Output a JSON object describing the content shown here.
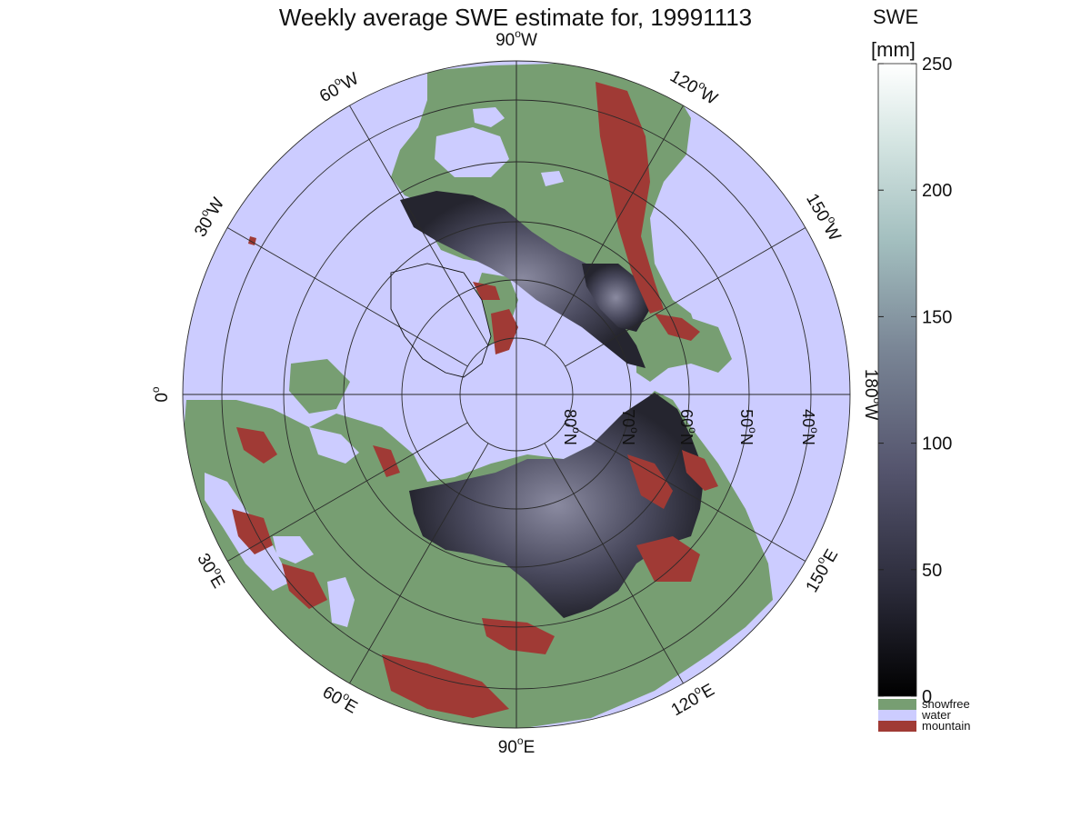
{
  "title": "Weekly average SWE estimate for, 19991113",
  "map": {
    "projection": "north polar stereographic",
    "colors": {
      "water": "#ccccff",
      "snowfree": "#779e72",
      "mountain": "#a03a35",
      "grid": "#2a2a2a",
      "coast": "#111111"
    },
    "lon_labels": [
      {
        "lon": "90W",
        "text": "90",
        "sup": "o",
        "suffix": "W"
      },
      {
        "lon": "120W",
        "text": "120",
        "sup": "o",
        "suffix": "W"
      },
      {
        "lon": "150W",
        "text": "150",
        "sup": "o",
        "suffix": "W"
      },
      {
        "lon": "180W",
        "text": "180",
        "sup": "o",
        "suffix": "W"
      },
      {
        "lon": "150E",
        "text": "150",
        "sup": "o",
        "suffix": "E"
      },
      {
        "lon": "120E",
        "text": "120",
        "sup": "o",
        "suffix": "E"
      },
      {
        "lon": "90E",
        "text": "90",
        "sup": "o",
        "suffix": "E"
      },
      {
        "lon": "60E",
        "text": "60",
        "sup": "o",
        "suffix": "E"
      },
      {
        "lon": "30E",
        "text": "30",
        "sup": "o",
        "suffix": "E"
      },
      {
        "lon": "0",
        "text": "0",
        "sup": "o",
        "suffix": ""
      },
      {
        "lon": "30W",
        "text": "30",
        "sup": "o",
        "suffix": "W"
      },
      {
        "lon": "60W",
        "text": "60",
        "sup": "o",
        "suffix": "W"
      }
    ],
    "lat_labels": [
      {
        "lat": 80,
        "text": "80",
        "sup": "o",
        "suffix": "N"
      },
      {
        "lat": 70,
        "text": "70",
        "sup": "o",
        "suffix": "N"
      },
      {
        "lat": 60,
        "text": "60",
        "sup": "o",
        "suffix": "N"
      },
      {
        "lat": 50,
        "text": "50",
        "sup": "o",
        "suffix": "N"
      },
      {
        "lat": 40,
        "text": "40",
        "sup": "o",
        "suffix": "N"
      }
    ]
  },
  "colorbar": {
    "title": "SWE",
    "unit": "[mm]",
    "range": [
      0,
      250
    ],
    "ticks": [
      0,
      50,
      100,
      150,
      200,
      250
    ],
    "tick_labels": [
      "0",
      "50",
      "100",
      "150",
      "200",
      "250"
    ],
    "gradient": [
      "#000000",
      "#2b2b3a",
      "#55556e",
      "#7a8696",
      "#a3bfbf",
      "#d6e6e3",
      "#ffffff"
    ],
    "legend": [
      {
        "label": "snowfree",
        "color": "#779e72"
      },
      {
        "label": "water",
        "color": "#ccccff"
      },
      {
        "label": "mountain",
        "color": "#a03a35"
      }
    ]
  }
}
